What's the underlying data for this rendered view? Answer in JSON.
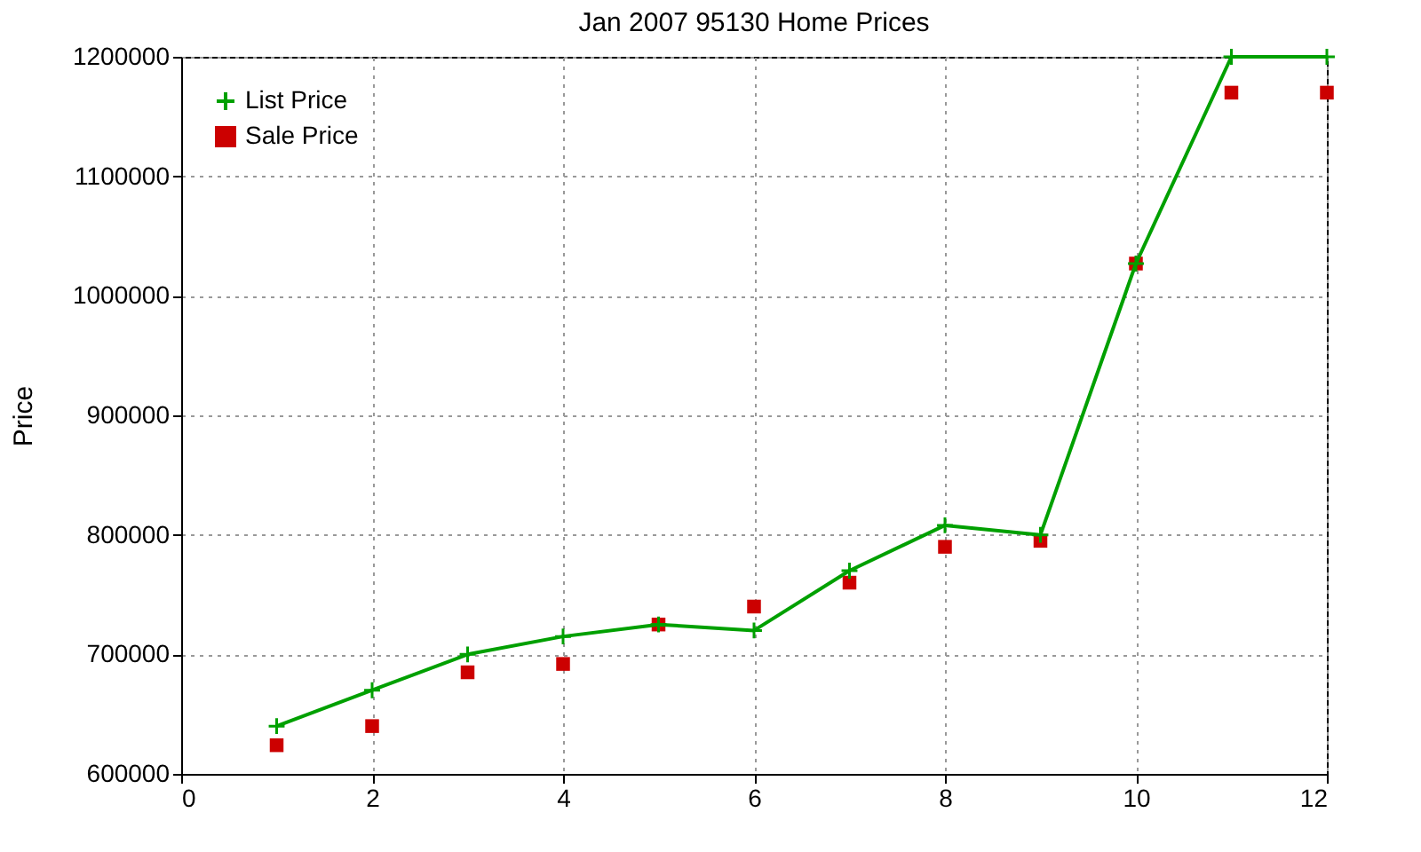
{
  "chart_data": {
    "type": "line",
    "title": "Jan 2007 95130 Home Prices",
    "ylabel": "Price",
    "x": [
      1,
      2,
      3,
      4,
      5,
      6,
      7,
      8,
      9,
      10,
      11,
      12
    ],
    "series": [
      {
        "name": "List Price",
        "marker": "cross",
        "color": "#00a000",
        "values": [
          640000,
          670000,
          700000,
          715000,
          725000,
          720000,
          770000,
          808000,
          800000,
          1027000,
          1200000,
          1200000
        ]
      },
      {
        "name": "Sale Price",
        "type": "scatter",
        "marker": "square",
        "color": "#cc0000",
        "values": [
          624000,
          640000,
          685000,
          692000,
          725000,
          740000,
          760000,
          790000,
          795000,
          1027000,
          1170000,
          1170000
        ]
      }
    ],
    "xlim": [
      0,
      12
    ],
    "xticks": [
      0,
      2,
      4,
      6,
      8,
      10,
      12
    ],
    "ylim": [
      600000,
      1200000
    ],
    "yticks": [
      600000,
      700000,
      800000,
      900000,
      1000000,
      1100000,
      1200000
    ],
    "grid": true,
    "legend": "top left",
    "line_style": "solid"
  }
}
